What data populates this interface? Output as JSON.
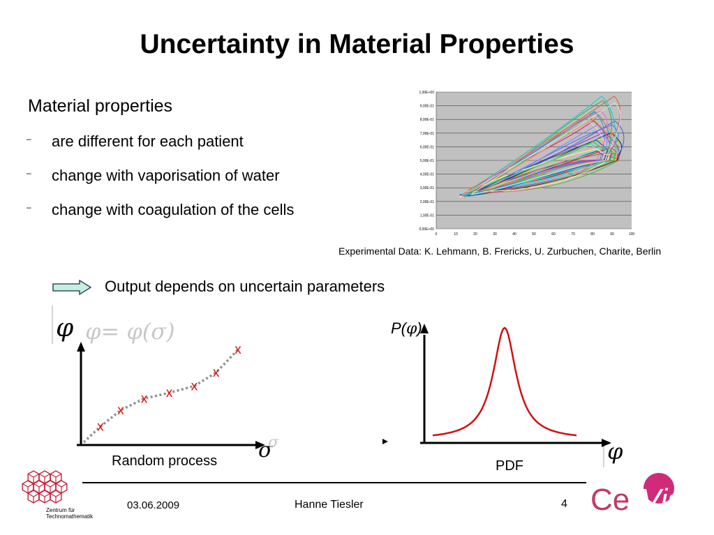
{
  "slide": {
    "title": "Uncertainty in Material Properties",
    "heading": "Material properties",
    "bullets": [
      "are different for each patient",
      "change with vaporisation of water",
      "change with coagulation of the cells"
    ],
    "bullet_marker": "–",
    "caption": "Experimental Data: K. Lehmann, B. Frericks, U. Zurbuchen, Charite, Berlin",
    "output_statement": "Output depends on uncertain parameters"
  },
  "experimental_chart": {
    "chart_data": {
      "type": "line",
      "yticks": [
        "0,00E+00",
        "1,00E-01",
        "2,00E-01",
        "3,00E-01",
        "4,00E-01",
        "5,00E-01",
        "6,00E-01",
        "7,00E-01",
        "8,00E-01",
        "9,00E-01",
        "1,00E+00"
      ],
      "xticks": [
        "0",
        "10",
        "20",
        "30",
        "40",
        "50",
        "60",
        "70",
        "80",
        "90",
        "100"
      ],
      "xlim": [
        0,
        100
      ],
      "ylim": [
        0,
        1
      ],
      "grid": true,
      "background": "#c0c0c0",
      "series_count": 30
    }
  },
  "random_process_plot": {
    "y_symbol": "φ",
    "equation": "φ= φ(σ)",
    "x_symbol": "σ",
    "x_symbol_ghost": "σ",
    "marker": "x",
    "label": "Random process",
    "samples": [
      {
        "sigma": 0.08,
        "phi": 0.12
      },
      {
        "sigma": 0.21,
        "phi": 0.29
      },
      {
        "sigma": 0.36,
        "phi": 0.41
      },
      {
        "sigma": 0.52,
        "phi": 0.47
      },
      {
        "sigma": 0.68,
        "phi": 0.54
      },
      {
        "sigma": 0.82,
        "phi": 0.68
      },
      {
        "sigma": 0.96,
        "phi": 0.92
      }
    ],
    "colors": {
      "marker": "#e01010",
      "curve": "#909090"
    }
  },
  "pdf_plot": {
    "y_label_prefix": "P(",
    "y_label_symbol": "φ",
    "y_label_suffix": ")",
    "x_symbol": "φ",
    "label": "PDF",
    "peak_position": 0.5,
    "colors": {
      "curve": "#d01010"
    }
  },
  "footer": {
    "date": "03.06.2009",
    "author": "Hanne Tiesler",
    "page": "4",
    "logo_left_caption": [
      "Zentrum für",
      "Technomathematik"
    ],
    "logo_right_text": [
      "Ce",
      "Vis"
    ],
    "colors": {
      "zfm": "#c0203a",
      "cevis_ce": "#c03a6a",
      "cevis_circle": "#d02a7a"
    }
  }
}
